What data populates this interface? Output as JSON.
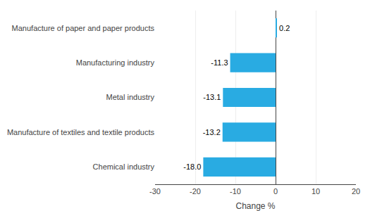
{
  "chart_data": {
    "type": "bar",
    "orientation": "horizontal",
    "categories": [
      "Chemical industry",
      "Manufacture of textiles and textile products",
      "Metal industry",
      "Manufacturing industry",
      "Manufacture of paper and paper products"
    ],
    "values": [
      -18.0,
      -13.2,
      -13.1,
      -11.3,
      0.2
    ],
    "value_labels": [
      "-18.0",
      "-13.2",
      "-13.1",
      "-11.3",
      "0.2"
    ],
    "data_labels": true,
    "color": "#29abe2",
    "xlabel": "Change %",
    "xlim": [
      -30,
      20
    ],
    "xticks": [
      -30,
      -20,
      -10,
      0,
      10,
      20
    ],
    "grid": true
  }
}
